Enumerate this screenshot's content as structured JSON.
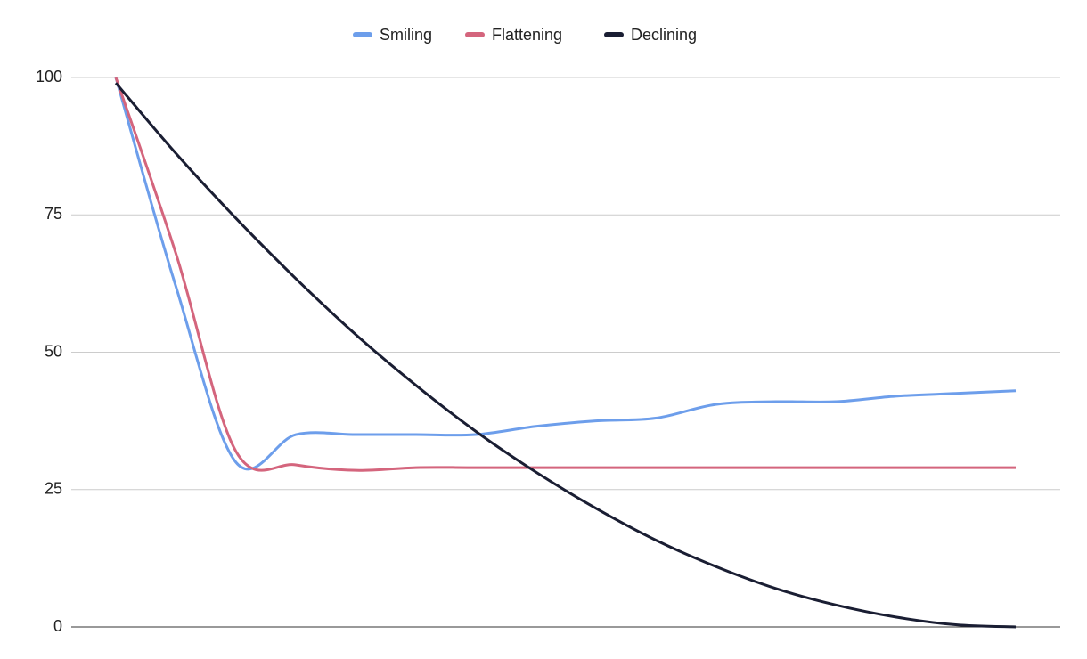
{
  "chart_data": {
    "type": "line",
    "categories": [
      null,
      null,
      null,
      null,
      null,
      null,
      null,
      null,
      null,
      null,
      null,
      null,
      null,
      null,
      null,
      null
    ],
    "series": [
      {
        "name": "Smiling",
        "color": "#6d9eeb",
        "values": [
          100,
          62,
          30,
          35,
          35,
          35,
          35,
          36.5,
          37.5,
          38,
          40.5,
          41,
          41,
          42,
          42.5,
          43
        ]
      },
      {
        "name": "Flattening",
        "color": "#d4657d",
        "values": [
          100,
          68,
          32,
          29.5,
          28.5,
          29,
          29,
          29,
          29,
          29,
          29,
          29,
          29,
          29,
          29,
          29
        ]
      },
      {
        "name": "Declining",
        "color": "#1a1e33",
        "values": [
          99,
          86.2,
          74.4,
          63.4,
          53.2,
          44,
          35.6,
          28.2,
          21.6,
          15.8,
          11,
          7,
          4,
          1.8,
          0.4,
          0
        ]
      }
    ],
    "ylim": [
      0,
      100
    ],
    "yticks": [
      0,
      25,
      50,
      75,
      100
    ],
    "grid": true,
    "legend": "top",
    "smooth": true
  }
}
